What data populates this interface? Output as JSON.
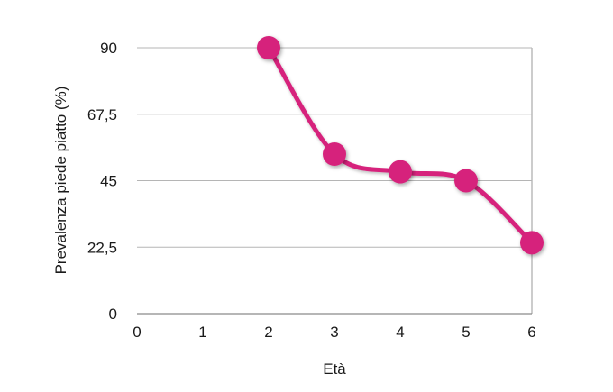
{
  "chart_data": {
    "type": "line",
    "xlabel": "Età",
    "ylabel": "Prevalenza piede piatto (%)",
    "x_ticks": [
      "0",
      "1",
      "2",
      "3",
      "4",
      "5",
      "6"
    ],
    "y_ticks": [
      "0",
      "22,5",
      "45",
      "67,5",
      "90"
    ],
    "xlim": [
      0,
      6
    ],
    "ylim": [
      0,
      90
    ],
    "grid": "horizontal",
    "legend": "none",
    "series": [
      {
        "color": "#d6237b",
        "x": [
          2,
          3,
          4,
          5,
          6
        ],
        "y": [
          90,
          54,
          48,
          45,
          24
        ]
      }
    ]
  }
}
